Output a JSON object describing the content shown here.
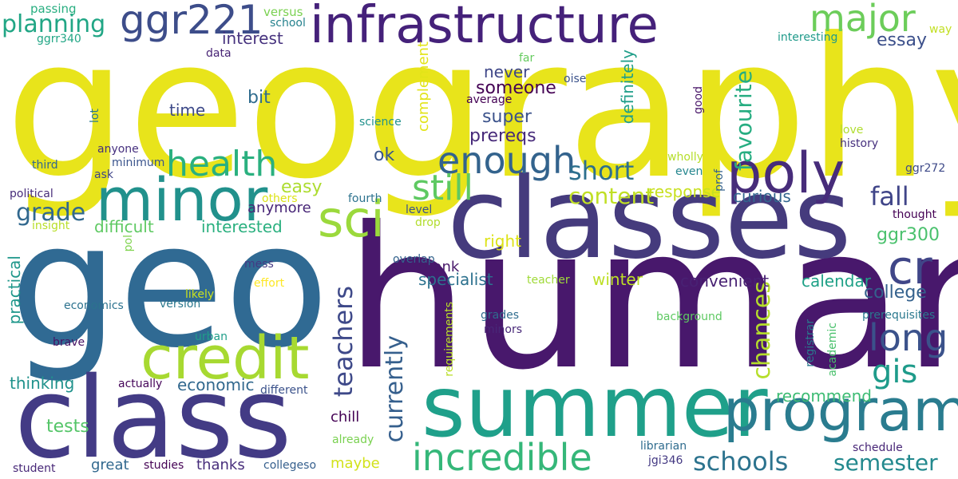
{
  "words": [
    {
      "text": "geography",
      "color": "#e8e41b"
    },
    {
      "text": "geo",
      "color": "#306a93"
    },
    {
      "text": "human",
      "color": "#48186c"
    },
    {
      "text": "classes",
      "color": "#453b7d"
    },
    {
      "text": "class",
      "color": "#433b85"
    },
    {
      "text": "summer",
      "color": "#1fa08a"
    },
    {
      "text": "infrastructure",
      "color": "#45217a"
    },
    {
      "text": "credit",
      "color": "#a7d931"
    },
    {
      "text": "program",
      "color": "#2a7c8f"
    },
    {
      "text": "minor",
      "color": "#21918c"
    },
    {
      "text": "poly",
      "color": "#472c7a"
    },
    {
      "text": "sci",
      "color": "#9bd93c"
    },
    {
      "text": "cr",
      "color": "#404688"
    },
    {
      "text": "ggr221",
      "color": "#3d4d8a"
    },
    {
      "text": "major",
      "color": "#6ccd5a"
    },
    {
      "text": "incredible",
      "color": "#35b779"
    },
    {
      "text": "health",
      "color": "#2ab07f"
    },
    {
      "text": "enough",
      "color": "#33638d"
    },
    {
      "text": "long",
      "color": "#3b528b"
    },
    {
      "text": "still",
      "color": "#5ec962"
    },
    {
      "text": "gis",
      "color": "#1e9b8a"
    },
    {
      "text": "schools",
      "color": "#2c738e"
    },
    {
      "text": "planning",
      "color": "#21a685"
    },
    {
      "text": "currently",
      "color": "#355f8d"
    },
    {
      "text": "teachers",
      "color": "#3e4989"
    },
    {
      "text": "fall",
      "color": "#404588"
    },
    {
      "text": "short",
      "color": "#2d708e"
    },
    {
      "text": "content",
      "color": "#c0df25"
    },
    {
      "text": "grade",
      "color": "#31688e"
    },
    {
      "text": "favourite",
      "color": "#26ad81"
    },
    {
      "text": "chances",
      "color": "#b5de2b"
    },
    {
      "text": "semester",
      "color": "#23898e"
    },
    {
      "text": "college",
      "color": "#34618d"
    },
    {
      "text": "essay",
      "color": "#3c508b"
    },
    {
      "text": "interest",
      "color": "#46327e"
    },
    {
      "text": "ggr300",
      "color": "#4ac16d"
    },
    {
      "text": "difficult",
      "color": "#5ec962"
    },
    {
      "text": "interested",
      "color": "#2ab07f"
    },
    {
      "text": "super",
      "color": "#3b528b"
    },
    {
      "text": "prereqs",
      "color": "#472a7a"
    },
    {
      "text": "response",
      "color": "#c8e020"
    },
    {
      "text": "specialist",
      "color": "#2c718e"
    },
    {
      "text": "convenient",
      "color": "#482173"
    },
    {
      "text": "calendar",
      "color": "#1fa187"
    },
    {
      "text": "easy",
      "color": "#addc30"
    },
    {
      "text": "thinking",
      "color": "#20928c"
    },
    {
      "text": "economic",
      "color": "#31688e"
    },
    {
      "text": "tests",
      "color": "#54c568"
    },
    {
      "text": "winter",
      "color": "#bddf26"
    },
    {
      "text": "recommend",
      "color": "#3dbc74"
    },
    {
      "text": "practical",
      "color": "#1f978b"
    },
    {
      "text": "definitely",
      "color": "#1f9e89"
    },
    {
      "text": "complement",
      "color": "#e2e418"
    },
    {
      "text": "curious",
      "color": "#32658e"
    },
    {
      "text": "passing",
      "color": "#28ae80"
    },
    {
      "text": "versus",
      "color": "#7ad151"
    },
    {
      "text": "ggrr340",
      "color": "#21a685"
    },
    {
      "text": "data",
      "color": "#482475"
    },
    {
      "text": "time",
      "color": "#3e4a89"
    },
    {
      "text": "bit",
      "color": "#2f6c8e"
    },
    {
      "text": "someone",
      "color": "#440154"
    },
    {
      "text": "never",
      "color": "#3f4788"
    },
    {
      "text": "ok",
      "color": "#39568c"
    },
    {
      "text": "anyone",
      "color": "#46307e"
    },
    {
      "text": "minimum",
      "color": "#3a548c"
    },
    {
      "text": "ask",
      "color": "#404688"
    },
    {
      "text": "third",
      "color": "#31688e"
    },
    {
      "text": "lot",
      "color": "#2a788e"
    },
    {
      "text": "political",
      "color": "#472c7a"
    },
    {
      "text": "insight",
      "color": "#b8de29"
    },
    {
      "text": "pol",
      "color": "#7fd34e"
    },
    {
      "text": "others",
      "color": "#dde318"
    },
    {
      "text": "fourth",
      "color": "#2c728e"
    },
    {
      "text": "anymore",
      "color": "#482677"
    },
    {
      "text": "thank",
      "color": "#48186a"
    },
    {
      "text": "right",
      "color": "#dde318"
    },
    {
      "text": "level",
      "color": "#3b528b"
    },
    {
      "text": "drop",
      "color": "#b2dd2d"
    },
    {
      "text": "overlap",
      "color": "#33638d"
    },
    {
      "text": "teacher",
      "color": "#a0da39"
    },
    {
      "text": "mess",
      "color": "#443983"
    },
    {
      "text": "effort",
      "color": "#fde725"
    },
    {
      "text": "likely",
      "color": "#cae11f"
    },
    {
      "text": "version",
      "color": "#2a788e"
    },
    {
      "text": "economics",
      "color": "#2c728e"
    },
    {
      "text": "urban",
      "color": "#1f9e89"
    },
    {
      "text": "brave",
      "color": "#471365"
    },
    {
      "text": "actually",
      "color": "#450559"
    },
    {
      "text": "different",
      "color": "#3b528b"
    },
    {
      "text": "chill",
      "color": "#440154"
    },
    {
      "text": "great",
      "color": "#31688e"
    },
    {
      "text": "studies",
      "color": "#440154"
    },
    {
      "text": "thanks",
      "color": "#472d7b"
    },
    {
      "text": "collegeso",
      "color": "#355f8d"
    },
    {
      "text": "maybe",
      "color": "#d2e21b"
    },
    {
      "text": "already",
      "color": "#7ad151"
    },
    {
      "text": "student",
      "color": "#482878"
    },
    {
      "text": "school",
      "color": "#26828e"
    },
    {
      "text": "far",
      "color": "#65cb5e"
    },
    {
      "text": "oise",
      "color": "#3b528b"
    },
    {
      "text": "average",
      "color": "#440154"
    },
    {
      "text": "science",
      "color": "#21918c"
    },
    {
      "text": "good",
      "color": "#481467"
    },
    {
      "text": "prof",
      "color": "#34618d"
    },
    {
      "text": "wholly",
      "color": "#b5de2b"
    },
    {
      "text": "even",
      "color": "#24868e"
    },
    {
      "text": "interesting",
      "color": "#1f9a8a"
    },
    {
      "text": "way",
      "color": "#c2df23"
    },
    {
      "text": "love",
      "color": "#b0dd2f"
    },
    {
      "text": "history",
      "color": "#46307e"
    },
    {
      "text": "ggr272",
      "color": "#3e4a89"
    },
    {
      "text": "thought",
      "color": "#440154"
    },
    {
      "text": "prerequisites",
      "color": "#2a788e"
    },
    {
      "text": "background",
      "color": "#5ec962"
    },
    {
      "text": "grades",
      "color": "#2f6c8e"
    },
    {
      "text": "minors",
      "color": "#482878"
    },
    {
      "text": "requirements",
      "color": "#bade28"
    },
    {
      "text": "registrar",
      "color": "#2a788e"
    },
    {
      "text": "academic",
      "color": "#4ac16d"
    },
    {
      "text": "librarian",
      "color": "#2f6c8e"
    },
    {
      "text": "schedule",
      "color": "#482677"
    },
    {
      "text": "jgi346",
      "color": "#443983"
    }
  ]
}
